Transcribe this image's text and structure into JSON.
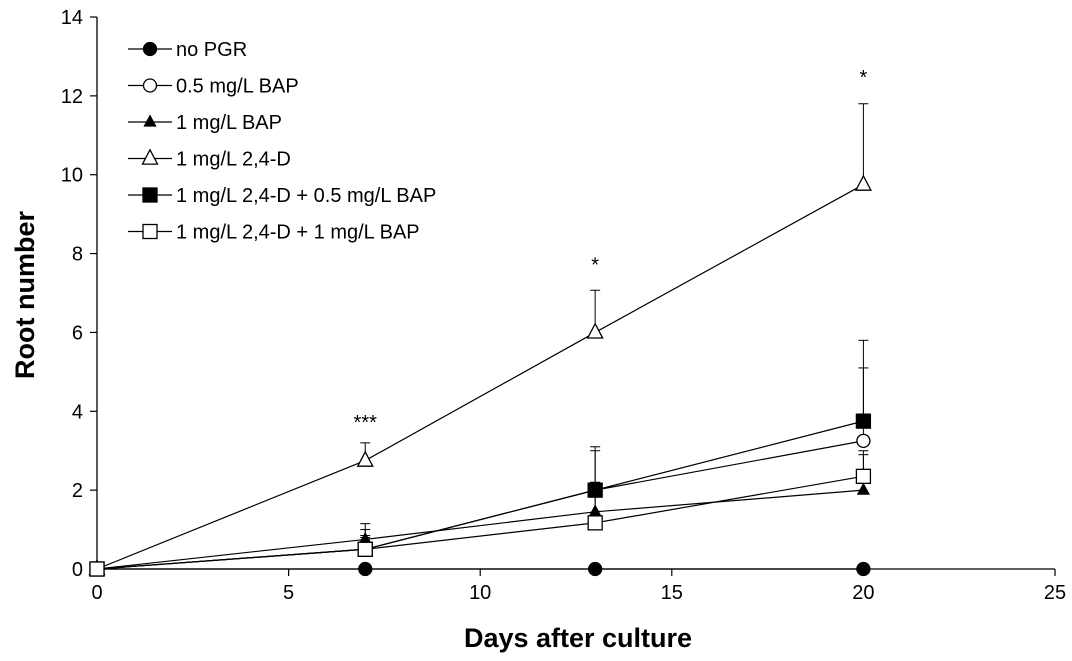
{
  "chart_data": {
    "type": "line",
    "title": "",
    "xlabel": "Days after culture",
    "ylabel": "Root number",
    "xlim": [
      0,
      25
    ],
    "ylim": [
      0,
      14
    ],
    "xticks": [
      0,
      5,
      10,
      15,
      20,
      25
    ],
    "yticks": [
      0,
      2,
      4,
      6,
      8,
      10,
      12,
      14
    ],
    "grid": false,
    "legend_position": "top-left",
    "x": [
      0,
      7,
      13,
      20
    ],
    "series": [
      {
        "name": "no PGR",
        "marker": "circle-filled",
        "values": [
          0,
          0,
          0,
          0
        ],
        "errors": [
          0,
          0,
          0,
          0
        ]
      },
      {
        "name": "0.5 mg/L BAP",
        "marker": "circle-open",
        "values": [
          0,
          0.5,
          2.0,
          3.25
        ],
        "errors": [
          0,
          0.35,
          1.0,
          1.85
        ]
      },
      {
        "name": "1 mg/L BAP",
        "marker": "triangle-filled",
        "values": [
          0,
          0.75,
          1.45,
          2.0
        ],
        "errors": [
          0,
          0.4,
          0.75,
          0.9
        ]
      },
      {
        "name": "1 mg/L 2,4-D",
        "marker": "triangle-open",
        "values": [
          0,
          2.75,
          6.0,
          9.75
        ],
        "errors": [
          0,
          0.45,
          1.07,
          2.05
        ]
      },
      {
        "name": "1 mg/L 2,4-D + 0.5 mg/L BAP",
        "marker": "square-filled",
        "values": [
          0,
          0.5,
          2.0,
          3.75
        ],
        "errors": [
          0,
          0.5,
          1.1,
          2.05
        ]
      },
      {
        "name": "1 mg/L 2,4-D + 1 mg/L BAP",
        "marker": "square-open",
        "values": [
          0,
          0.5,
          1.17,
          2.35
        ],
        "errors": [
          0,
          0.3,
          0.8,
          0.65
        ]
      }
    ],
    "annotations": [
      {
        "x": 7,
        "y": 3.55,
        "text": "***"
      },
      {
        "x": 13,
        "y": 7.55,
        "text": "*"
      },
      {
        "x": 20,
        "y": 12.3,
        "text": "*"
      }
    ]
  }
}
